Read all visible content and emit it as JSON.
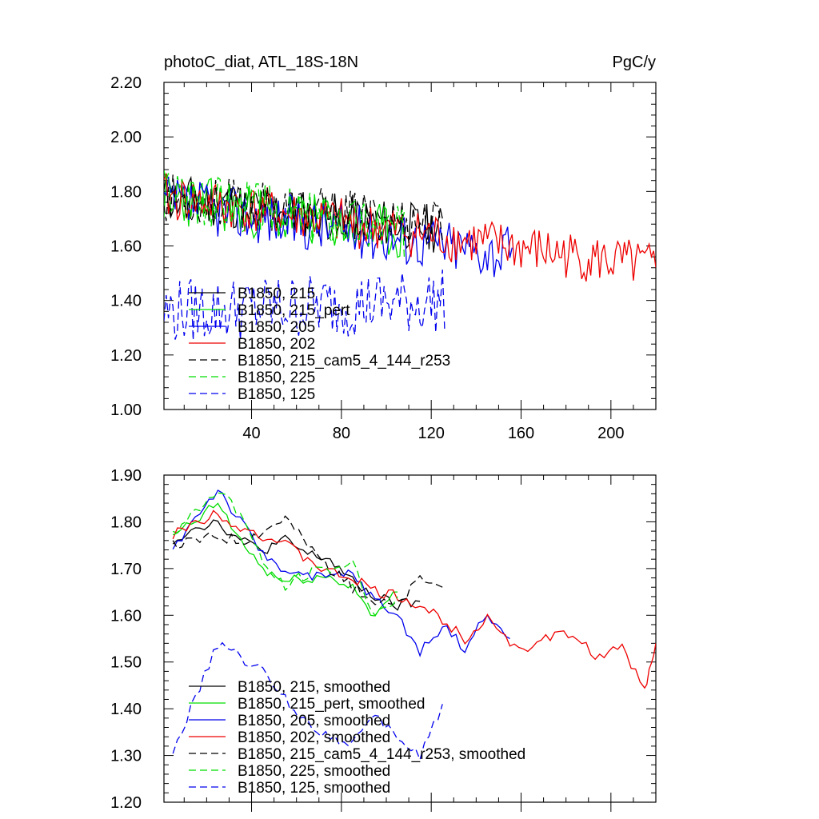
{
  "chart_data": [
    {
      "type": "line",
      "title_left": "photoC_diat, ATL_18S-18N",
      "title_right": "PgC/y",
      "xlim": [
        1,
        220
      ],
      "ylim": [
        1.0,
        2.2
      ],
      "x_ticks": [
        40,
        80,
        120,
        160,
        200
      ],
      "x_tick_labels": [
        "40",
        "80",
        "120",
        "160",
        "200"
      ],
      "y_ticks": [
        1.0,
        1.2,
        1.4,
        1.6,
        1.8,
        2.0,
        2.2
      ],
      "y_tick_labels": [
        "1.00",
        "1.20",
        "1.40",
        "1.60",
        "1.80",
        "2.00",
        "2.20"
      ],
      "series": [
        {
          "name": "B1850, 215",
          "color": "#000000",
          "dash": false,
          "length": 125,
          "start": 1.78,
          "end": 1.66,
          "noise": 0.09,
          "seed": 11
        },
        {
          "name": "B1850, 215_pert",
          "color": "#00dd00",
          "dash": false,
          "length": 108,
          "start": 1.78,
          "end": 1.64,
          "noise": 0.1,
          "seed": 23
        },
        {
          "name": "B1850, 205",
          "color": "#0000ee",
          "dash": false,
          "length": 156,
          "start": 1.76,
          "end": 1.57,
          "noise": 0.1,
          "seed": 37
        },
        {
          "name": "B1850, 202",
          "color": "#ee0000",
          "dash": false,
          "length": 220,
          "start": 1.78,
          "end": 1.52,
          "noise": 0.09,
          "seed": 41
        },
        {
          "name": "B1850, 215_cam5_4_144_r253",
          "color": "#000000",
          "dash": true,
          "length": 125,
          "start": 1.78,
          "end": 1.68,
          "noise": 0.09,
          "seed": 53
        },
        {
          "name": "B1850, 225",
          "color": "#00dd00",
          "dash": true,
          "length": 108,
          "start": 1.8,
          "end": 1.65,
          "noise": 0.1,
          "seed": 67
        },
        {
          "name": "B1850, 125",
          "color": "#0000ee",
          "dash": true,
          "length": 126,
          "start": 1.36,
          "end": 1.4,
          "noise": 0.12,
          "seed": 79
        }
      ]
    },
    {
      "type": "line",
      "xlim": [
        1,
        220
      ],
      "ylim": [
        1.2,
        1.9
      ],
      "x_ticks": [
        40,
        80,
        120,
        160,
        200
      ],
      "y_ticks": [
        1.2,
        1.3,
        1.4,
        1.5,
        1.6,
        1.7,
        1.8,
        1.9
      ],
      "y_tick_labels": [
        "1.20",
        "1.30",
        "1.40",
        "1.50",
        "1.60",
        "1.70",
        "1.80",
        "1.90"
      ],
      "series": [
        {
          "name": "B1850, 215, smoothed",
          "color": "#000000",
          "dash": false,
          "x": [
            5,
            15,
            25,
            35,
            45,
            55,
            65,
            75,
            85,
            95,
            105,
            115
          ],
          "y": [
            1.76,
            1.79,
            1.8,
            1.76,
            1.74,
            1.76,
            1.73,
            1.72,
            1.67,
            1.64,
            1.62,
            1.63
          ]
        },
        {
          "name": "B1850, 215_pert, smoothed",
          "color": "#00dd00",
          "dash": false,
          "x": [
            5,
            15,
            25,
            35,
            45,
            55,
            65,
            75,
            85,
            95,
            105
          ],
          "y": [
            1.77,
            1.8,
            1.84,
            1.76,
            1.7,
            1.67,
            1.68,
            1.68,
            1.66,
            1.6,
            1.65
          ]
        },
        {
          "name": "B1850, 205, smoothed",
          "color": "#0000ee",
          "dash": false,
          "x": [
            5,
            15,
            25,
            35,
            45,
            55,
            65,
            75,
            85,
            95,
            105,
            115,
            125,
            135,
            145,
            155
          ],
          "y": [
            1.74,
            1.81,
            1.87,
            1.8,
            1.73,
            1.7,
            1.68,
            1.68,
            1.69,
            1.63,
            1.6,
            1.52,
            1.58,
            1.53,
            1.6,
            1.55
          ]
        },
        {
          "name": "B1850, 202, smoothed",
          "color": "#ee0000",
          "dash": false,
          "x": [
            5,
            15,
            25,
            35,
            45,
            55,
            65,
            75,
            85,
            95,
            105,
            115,
            125,
            135,
            145,
            155,
            165,
            175,
            185,
            195,
            205,
            215,
            220
          ],
          "y": [
            1.77,
            1.8,
            1.82,
            1.79,
            1.77,
            1.75,
            1.72,
            1.69,
            1.68,
            1.65,
            1.64,
            1.62,
            1.59,
            1.55,
            1.6,
            1.54,
            1.53,
            1.56,
            1.55,
            1.51,
            1.53,
            1.44,
            1.54
          ]
        },
        {
          "name": "B1850, 215_cam5_4_144_r253, smoothed",
          "color": "#000000",
          "dash": true,
          "x": [
            5,
            15,
            25,
            35,
            45,
            55,
            65,
            75,
            85,
            95,
            105,
            115,
            125
          ],
          "y": [
            1.75,
            1.76,
            1.77,
            1.76,
            1.78,
            1.81,
            1.75,
            1.7,
            1.66,
            1.63,
            1.62,
            1.68,
            1.66
          ]
        },
        {
          "name": "B1850, 225, smoothed",
          "color": "#00dd00",
          "dash": true,
          "x": [
            5,
            15,
            25,
            35,
            45,
            55,
            65,
            75,
            85,
            95,
            105
          ],
          "y": [
            1.77,
            1.82,
            1.87,
            1.82,
            1.71,
            1.66,
            1.69,
            1.7,
            1.71,
            1.6,
            1.64
          ]
        },
        {
          "name": "B1850, 125, smoothed",
          "color": "#0000ee",
          "dash": true,
          "x": [
            5,
            15,
            25,
            35,
            45,
            55,
            65,
            75,
            85,
            95,
            105,
            115,
            125
          ],
          "y": [
            1.31,
            1.42,
            1.54,
            1.51,
            1.48,
            1.42,
            1.37,
            1.34,
            1.33,
            1.38,
            1.34,
            1.3,
            1.41
          ]
        }
      ]
    }
  ]
}
